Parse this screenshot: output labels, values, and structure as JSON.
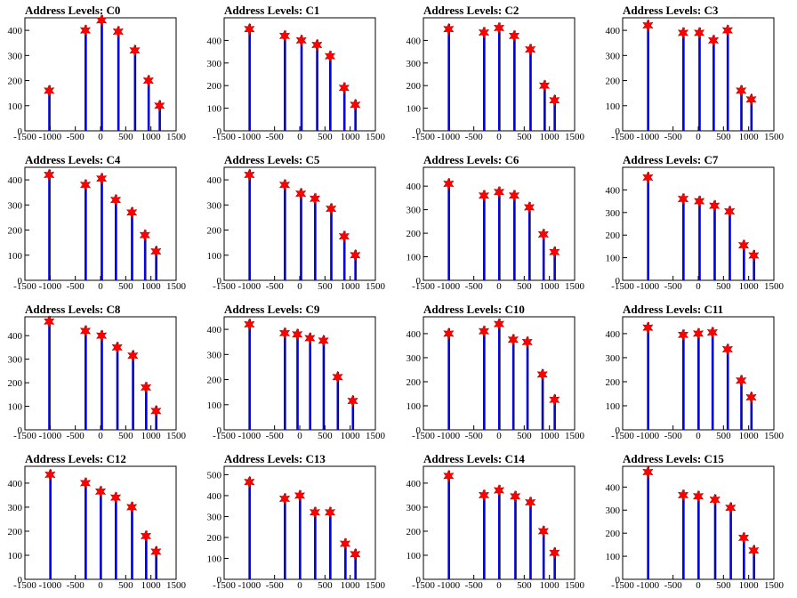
{
  "chart_data": [
    {
      "type": "bar",
      "title": "Address Levels: C0",
      "xlim": [
        -1500,
        1500
      ],
      "ylim": [
        0,
        450
      ],
      "xticks": [
        -1500,
        -1000,
        -500,
        0,
        500,
        1000,
        1500
      ],
      "xtick_labels": [
        "-1500",
        "-1000",
        "-500",
        "0",
        "500",
        "1000",
        "1500"
      ],
      "yticks": [
        0,
        100,
        200,
        300,
        400
      ],
      "ytick_labels": [
        "0",
        "100",
        "200",
        "300",
        "400"
      ],
      "peaks": {
        "x": [
          -1020,
          -300,
          20,
          350,
          680,
          950,
          1170
        ],
        "y": [
          160,
          400,
          440,
          395,
          320,
          200,
          100
        ]
      }
    },
    {
      "type": "bar",
      "title": "Address Levels: C1",
      "xlim": [
        -1500,
        1500
      ],
      "ylim": [
        0,
        500
      ],
      "xticks": [
        -1500,
        -1000,
        -500,
        0,
        500,
        1000,
        1500
      ],
      "xtick_labels": [
        "-1500",
        "-1000",
        "-500",
        "0",
        "500",
        "1000",
        "1500"
      ],
      "yticks": [
        0,
        100,
        200,
        300,
        400
      ],
      "ytick_labels": [
        "0",
        "100",
        "200",
        "300",
        "400"
      ],
      "peaks": {
        "x": [
          -1000,
          -300,
          30,
          340,
          600,
          880,
          1100
        ],
        "y": [
          450,
          420,
          400,
          380,
          330,
          190,
          115
        ]
      }
    },
    {
      "type": "bar",
      "title": "Address Levels: C2",
      "xlim": [
        -1500,
        1500
      ],
      "ylim": [
        0,
        500
      ],
      "xticks": [
        -1500,
        -1000,
        -500,
        0,
        500,
        1000,
        1500
      ],
      "xtick_labels": [
        "-1500",
        "-1000",
        "-500",
        "0",
        "500",
        "1000",
        "1500"
      ],
      "yticks": [
        0,
        100,
        200,
        300,
        400
      ],
      "ytick_labels": [
        "0",
        "100",
        "200",
        "300",
        "400"
      ],
      "peaks": {
        "x": [
          -1000,
          -300,
          0,
          300,
          620,
          900,
          1100
        ],
        "y": [
          450,
          435,
          455,
          420,
          360,
          200,
          135
        ]
      }
    },
    {
      "type": "bar",
      "title": "Address Levels: C3",
      "xlim": [
        -1500,
        1500
      ],
      "ylim": [
        0,
        450
      ],
      "xticks": [
        -1500,
        -1000,
        -500,
        0,
        500,
        1000,
        1500
      ],
      "xtick_labels": [
        "-1500",
        "-1000",
        "-500",
        "0",
        "500",
        "1000",
        "1500"
      ],
      "yticks": [
        0,
        100,
        200,
        300,
        400
      ],
      "ytick_labels": [
        "0",
        "100",
        "200",
        "300",
        "400"
      ],
      "peaks": {
        "x": [
          -1000,
          -300,
          20,
          300,
          580,
          850,
          1050
        ],
        "y": [
          420,
          390,
          390,
          360,
          400,
          160,
          125
        ]
      }
    },
    {
      "type": "bar",
      "title": "Address Levels: C4",
      "xlim": [
        -1500,
        1500
      ],
      "ylim": [
        0,
        450
      ],
      "xticks": [
        -1500,
        -1000,
        -500,
        0,
        500,
        1000,
        1500
      ],
      "xtick_labels": [
        "-1500",
        "-1000",
        "-500",
        "0",
        "500",
        "1000",
        "1500"
      ],
      "yticks": [
        0,
        100,
        200,
        300,
        400
      ],
      "ytick_labels": [
        "0",
        "100",
        "200",
        "300",
        "400"
      ],
      "peaks": {
        "x": [
          -1020,
          -300,
          20,
          300,
          620,
          880,
          1100
        ],
        "y": [
          420,
          380,
          405,
          320,
          270,
          180,
          115
        ]
      }
    },
    {
      "type": "bar",
      "title": "Address Levels: C5",
      "xlim": [
        -1500,
        1500
      ],
      "ylim": [
        0,
        450
      ],
      "xticks": [
        -1500,
        -1000,
        -500,
        0,
        500,
        1000,
        1500
      ],
      "xtick_labels": [
        "-1500",
        "-1000",
        "-500",
        "0",
        "500",
        "1000",
        "1500"
      ],
      "yticks": [
        0,
        100,
        200,
        300,
        400
      ],
      "ytick_labels": [
        "0",
        "100",
        "200",
        "300",
        "400"
      ],
      "peaks": {
        "x": [
          -1000,
          -300,
          20,
          300,
          620,
          880,
          1100
        ],
        "y": [
          420,
          380,
          345,
          325,
          285,
          175,
          100
        ]
      }
    },
    {
      "type": "bar",
      "title": "Address Levels: C6",
      "xlim": [
        -1500,
        1500
      ],
      "ylim": [
        0,
        480
      ],
      "xticks": [
        -1500,
        -1000,
        -500,
        0,
        500,
        1000,
        1500
      ],
      "xtick_labels": [
        "-1500",
        "-1000",
        "-500",
        "0",
        "500",
        "1000",
        "1500"
      ],
      "yticks": [
        0,
        100,
        200,
        300,
        400
      ],
      "ytick_labels": [
        "0",
        "100",
        "200",
        "300",
        "400"
      ],
      "peaks": {
        "x": [
          -1000,
          -300,
          0,
          300,
          600,
          880,
          1100
        ],
        "y": [
          410,
          360,
          375,
          360,
          310,
          195,
          120
        ]
      }
    },
    {
      "type": "bar",
      "title": "Address Levels: C7",
      "xlim": [
        -1500,
        1500
      ],
      "ylim": [
        0,
        500
      ],
      "xticks": [
        -1500,
        -1000,
        -500,
        0,
        500,
        1000,
        1500
      ],
      "xtick_labels": [
        "-1500",
        "-1000",
        "-500",
        "0",
        "500",
        "1000",
        "1500"
      ],
      "yticks": [
        0,
        100,
        200,
        300,
        400
      ],
      "ytick_labels": [
        "0",
        "100",
        "200",
        "300",
        "400"
      ],
      "peaks": {
        "x": [
          -1000,
          -300,
          20,
          320,
          620,
          900,
          1100
        ],
        "y": [
          455,
          360,
          350,
          330,
          305,
          155,
          110
        ]
      }
    },
    {
      "type": "bar",
      "title": "Address Levels: C8",
      "xlim": [
        -1500,
        1500
      ],
      "ylim": [
        0,
        480
      ],
      "xticks": [
        -1500,
        -1000,
        -500,
        0,
        500,
        1000,
        1500
      ],
      "xtick_labels": [
        "-1500",
        "-1000",
        "-500",
        "0",
        "500",
        "1000",
        "1500"
      ],
      "yticks": [
        0,
        100,
        200,
        300,
        400
      ],
      "ytick_labels": [
        "0",
        "100",
        "200",
        "300",
        "400"
      ],
      "peaks": {
        "x": [
          -1020,
          -300,
          20,
          330,
          640,
          900,
          1100
        ],
        "y": [
          460,
          420,
          400,
          350,
          315,
          180,
          80
        ]
      }
    },
    {
      "type": "bar",
      "title": "Address Levels: C9",
      "xlim": [
        -1500,
        1500
      ],
      "ylim": [
        0,
        450
      ],
      "xticks": [
        -1500,
        -1000,
        -500,
        0,
        500,
        1000,
        1500
      ],
      "xtick_labels": [
        "-1500",
        "-1000",
        "-500",
        "0",
        "500",
        "1000",
        "1500"
      ],
      "yticks": [
        0,
        100,
        200,
        300,
        400
      ],
      "ytick_labels": [
        "0",
        "100",
        "200",
        "300",
        "400"
      ],
      "peaks": {
        "x": [
          -1000,
          -300,
          -50,
          200,
          470,
          750,
          1050
        ],
        "y": [
          420,
          385,
          380,
          365,
          355,
          210,
          115
        ]
      }
    },
    {
      "type": "bar",
      "title": "Address Levels: C10",
      "xlim": [
        -1500,
        1500
      ],
      "ylim": [
        0,
        470
      ],
      "xticks": [
        -1500,
        -1000,
        -500,
        0,
        500,
        1000,
        1500
      ],
      "xtick_labels": [
        "-1500",
        "-1000",
        "-500",
        "0",
        "500",
        "1000",
        "1500"
      ],
      "yticks": [
        0,
        100,
        200,
        300,
        400
      ],
      "ytick_labels": [
        "0",
        "100",
        "200",
        "300",
        "400"
      ],
      "peaks": {
        "x": [
          -1000,
          -300,
          0,
          280,
          560,
          860,
          1100
        ],
        "y": [
          400,
          410,
          440,
          375,
          365,
          230,
          125
        ]
      }
    },
    {
      "type": "bar",
      "title": "Address Levels: C11",
      "xlim": [
        -1500,
        1500
      ],
      "ylim": [
        0,
        470
      ],
      "xticks": [
        -1500,
        -1000,
        -500,
        0,
        500,
        1000,
        1500
      ],
      "xtick_labels": [
        "-1500",
        "-1000",
        "-500",
        "0",
        "500",
        "1000",
        "1500"
      ],
      "yticks": [
        0,
        100,
        200,
        300,
        400
      ],
      "ytick_labels": [
        "0",
        "100",
        "200",
        "300",
        "400"
      ],
      "peaks": {
        "x": [
          -1000,
          -300,
          0,
          280,
          580,
          850,
          1050
        ],
        "y": [
          425,
          395,
          400,
          405,
          335,
          205,
          135
        ]
      }
    },
    {
      "type": "bar",
      "title": "Address Levels: C12",
      "xlim": [
        -1500,
        1500
      ],
      "ylim": [
        0,
        470
      ],
      "xticks": [
        -1500,
        -1000,
        -500,
        0,
        500,
        1000,
        1500
      ],
      "xtick_labels": [
        "-1500",
        "-1000",
        "-500",
        "0",
        "500",
        "1000",
        "1500"
      ],
      "yticks": [
        0,
        100,
        200,
        300,
        400
      ],
      "ytick_labels": [
        "0",
        "100",
        "200",
        "300",
        "400"
      ],
      "peaks": {
        "x": [
          -1000,
          -300,
          0,
          300,
          620,
          900,
          1100
        ],
        "y": [
          435,
          400,
          365,
          340,
          300,
          180,
          115
        ]
      }
    },
    {
      "type": "bar",
      "title": "Address Levels: C13",
      "xlim": [
        -1500,
        1500
      ],
      "ylim": [
        0,
        540
      ],
      "xticks": [
        -1500,
        -1000,
        -500,
        0,
        500,
        1000,
        1500
      ],
      "xtick_labels": [
        "-1500",
        "-1000",
        "-500",
        "0",
        "500",
        "1000",
        "1500"
      ],
      "yticks": [
        0,
        100,
        200,
        300,
        400,
        500
      ],
      "ytick_labels": [
        "0",
        "100",
        "200",
        "300",
        "400",
        "500"
      ],
      "peaks": {
        "x": [
          -1000,
          -300,
          0,
          300,
          600,
          900,
          1100
        ],
        "y": [
          465,
          385,
          400,
          320,
          320,
          170,
          120
        ]
      }
    },
    {
      "type": "bar",
      "title": "Address Levels: C14",
      "xlim": [
        -1500,
        1500
      ],
      "ylim": [
        0,
        470
      ],
      "xticks": [
        -1500,
        -1000,
        -500,
        0,
        500,
        1000,
        1500
      ],
      "xtick_labels": [
        "-1500",
        "-1000",
        "-500",
        "0",
        "500",
        "1000",
        "1500"
      ],
      "yticks": [
        0,
        100,
        200,
        300,
        400
      ],
      "ytick_labels": [
        "0",
        "100",
        "200",
        "300",
        "400"
      ],
      "peaks": {
        "x": [
          -1000,
          -300,
          0,
          320,
          620,
          880,
          1100
        ],
        "y": [
          430,
          350,
          370,
          345,
          320,
          200,
          110
        ]
      }
    },
    {
      "type": "bar",
      "title": "Address Levels: C15",
      "xlim": [
        -1500,
        1500
      ],
      "ylim": [
        0,
        490
      ],
      "xticks": [
        -1500,
        -1000,
        -500,
        0,
        500,
        1000,
        1500
      ],
      "xtick_labels": [
        "-1500",
        "-1000",
        "-500",
        "0",
        "500",
        "1000",
        "1500"
      ],
      "yticks": [
        0,
        100,
        200,
        300,
        400
      ],
      "ytick_labels": [
        "0",
        "100",
        "200",
        "300",
        "400"
      ],
      "peaks": {
        "x": [
          -1000,
          -300,
          0,
          330,
          640,
          900,
          1100
        ],
        "y": [
          465,
          365,
          360,
          345,
          310,
          180,
          125
        ]
      }
    }
  ],
  "colors": {
    "bar": "#0000ee",
    "bar_shadow": "#000000",
    "marker": "#ff0000",
    "axis": "#000000"
  },
  "marker_icon": "star-marker-icon"
}
